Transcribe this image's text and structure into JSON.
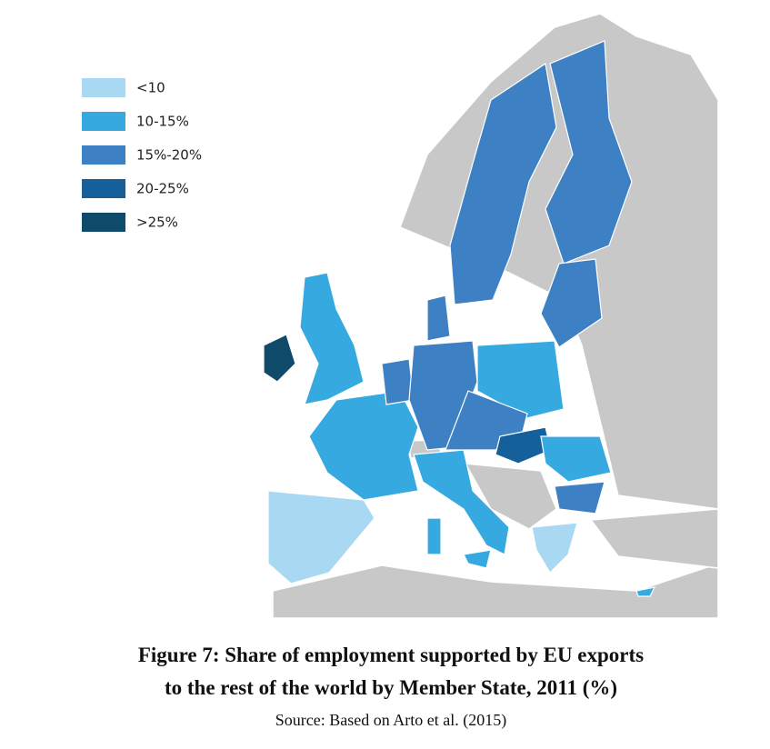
{
  "legend": {
    "items": [
      {
        "label": "<10",
        "color": "#a9d9f2"
      },
      {
        "label": "10-15%",
        "color": "#35a9e0"
      },
      {
        "label": "15%-20%",
        "color": "#3d80c4"
      },
      {
        "label": "20-25%",
        "color": "#15609a"
      },
      {
        "label": ">25%",
        "color": "#0f4a6a"
      }
    ]
  },
  "caption": {
    "title_lines": [
      "Figure 7: Share of employment supported by EU exports",
      "to the rest of the world by Member State, 2011 (%)"
    ],
    "source": "Source: Based on Arto et al. (2015)"
  }
}
